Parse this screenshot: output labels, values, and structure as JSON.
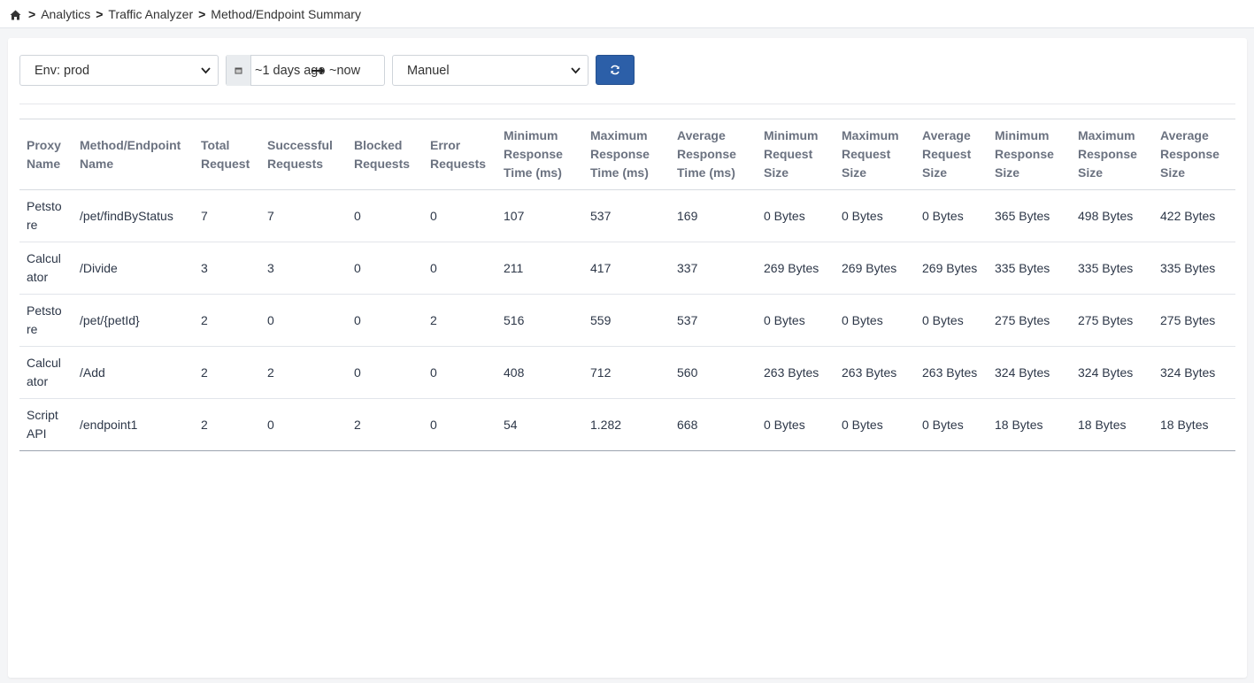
{
  "breadcrumb": {
    "items": [
      "Analytics",
      "Traffic Analyzer",
      "Method/Endpoint Summary"
    ],
    "separator": ">"
  },
  "filters": {
    "env_select": "Env: prod",
    "date_from": "~1 days ago",
    "date_to": "~now",
    "mode_select": "Manuel"
  },
  "icons": {
    "home": "home-icon",
    "calendar": "calendar-icon",
    "arrow": "arrow-right-icon",
    "refresh": "refresh-icon"
  },
  "colors": {
    "primary": "#2c5fa8"
  },
  "table": {
    "headers": [
      "Proxy Name",
      "Method/Endpoint Name",
      "Total Request",
      "Successful Requests",
      "Blocked Requests",
      "Error Requests",
      "Minimum Response Time (ms)",
      "Maximum Response Time (ms)",
      "Average Response Time (ms)",
      "Minimum Request Size",
      "Maximum Request Size",
      "Average Request Size",
      "Minimum Response Size",
      "Maximum Response Size",
      "Average Response Size"
    ],
    "rows": [
      [
        "Petstore",
        "/pet/findByStatus",
        "7",
        "7",
        "0",
        "0",
        "107",
        "537",
        "169",
        "0 Bytes",
        "0 Bytes",
        "0 Bytes",
        "365 Bytes",
        "498 Bytes",
        "422 Bytes"
      ],
      [
        "Calculator",
        "/Divide",
        "3",
        "3",
        "0",
        "0",
        "211",
        "417",
        "337",
        "269 Bytes",
        "269 Bytes",
        "269 Bytes",
        "335 Bytes",
        "335 Bytes",
        "335 Bytes"
      ],
      [
        "Petstore",
        "/pet/{petId}",
        "2",
        "0",
        "0",
        "2",
        "516",
        "559",
        "537",
        "0 Bytes",
        "0 Bytes",
        "0 Bytes",
        "275 Bytes",
        "275 Bytes",
        "275 Bytes"
      ],
      [
        "Calculator",
        "/Add",
        "2",
        "2",
        "0",
        "0",
        "408",
        "712",
        "560",
        "263 Bytes",
        "263 Bytes",
        "263 Bytes",
        "324 Bytes",
        "324 Bytes",
        "324 Bytes"
      ],
      [
        "Script API",
        "/endpoint1",
        "2",
        "0",
        "2",
        "0",
        "54",
        "1.282",
        "668",
        "0 Bytes",
        "0 Bytes",
        "0 Bytes",
        "18 Bytes",
        "18 Bytes",
        "18 Bytes"
      ]
    ]
  }
}
